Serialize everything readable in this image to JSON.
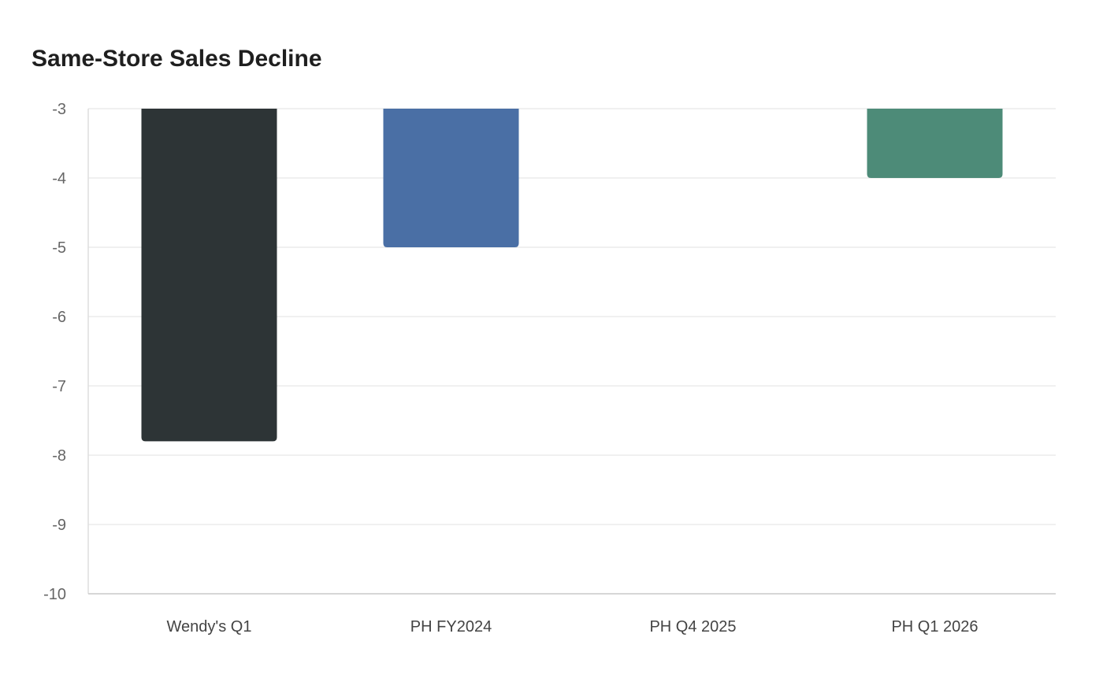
{
  "chart_data": {
    "type": "bar",
    "title": "Same-Store Sales Decline",
    "xlabel": "",
    "ylabel": "",
    "categories": [
      "Wendy's Q1",
      "PH FY2024",
      "PH Q4 2025",
      "PH Q1 2026"
    ],
    "values": [
      -7.8,
      -5,
      -3,
      -4
    ],
    "ylim": [
      -10,
      -3
    ],
    "yticks": [
      -3,
      -4,
      -5,
      -6,
      -7,
      -8,
      -9,
      -10
    ],
    "grid": true,
    "legend": "none",
    "colors": [
      "#2d3436",
      "#4a6fa5",
      "#6c5ce7",
      "#4d8b78"
    ]
  }
}
